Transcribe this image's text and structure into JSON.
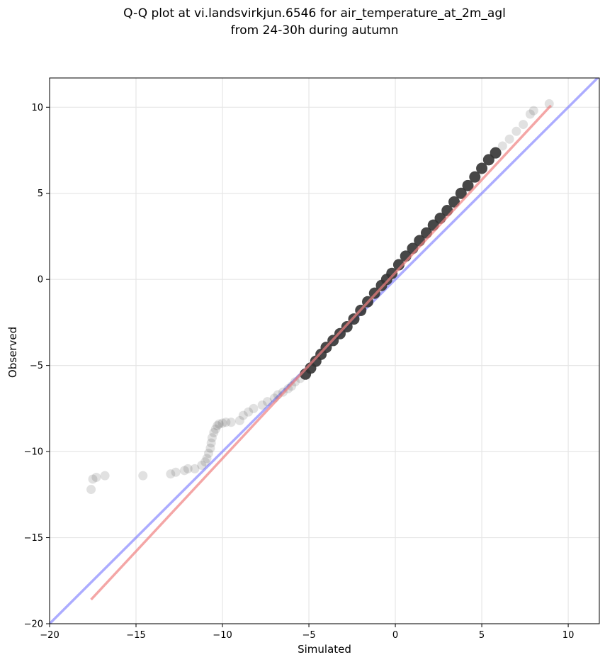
{
  "chart_data": {
    "type": "scatter",
    "title_lines": [
      "Q-Q plot at vi.landsvirkjun.6546 for air_temperature_at_2m_agl",
      "from 24-30h during autumn"
    ],
    "xlabel": "Simulated",
    "ylabel": "Observed",
    "xlim": [
      -20,
      11.8
    ],
    "ylim": [
      -20,
      11.7
    ],
    "xticks": [
      -20,
      -15,
      -10,
      -5,
      0,
      5,
      10
    ],
    "yticks": [
      -20,
      -15,
      -10,
      -5,
      0,
      5,
      10
    ],
    "xtick_labels": [
      "−20",
      "−15",
      "−10",
      "−5",
      "0",
      "5",
      "10"
    ],
    "ytick_labels": [
      "−20",
      "−15",
      "−10",
      "−5",
      "0",
      "5",
      "10"
    ],
    "grid": true,
    "colors": {
      "points": "#333333",
      "fit_line": "#f08080",
      "identity_line": "#8080ff",
      "grid": "#e6e6e6"
    },
    "fit_line": {
      "x": [
        -17.6,
        9.0
      ],
      "y": [
        -18.6,
        10.1
      ]
    },
    "identity_line": {
      "x": [
        -20,
        11.8
      ],
      "y": [
        -20,
        11.8
      ]
    },
    "points": {
      "x": [
        -17.6,
        -17.5,
        -17.3,
        -16.8,
        -14.6,
        -13.0,
        -12.7,
        -12.2,
        -12.0,
        -11.6,
        -11.2,
        -11.0,
        -10.9,
        -10.8,
        -10.7,
        -10.65,
        -10.6,
        -10.5,
        -10.4,
        -10.3,
        -10.2,
        -10.0,
        -9.8,
        -9.5,
        -9.0,
        -8.8,
        -8.5,
        -8.2,
        -7.7,
        -7.4,
        -7.0,
        -6.8,
        -6.5,
        -6.2,
        -6.0,
        -5.8,
        -5.5,
        -5.2,
        -4.9,
        -4.6,
        -4.3,
        -4.0,
        -3.6,
        -3.2,
        -2.8,
        -2.4,
        -2.0,
        -1.6,
        -1.2,
        -0.8,
        -0.5,
        -0.2,
        0.2,
        0.6,
        1.0,
        1.4,
        1.8,
        2.2,
        2.6,
        3.0,
        3.4,
        3.8,
        4.2,
        4.6,
        5.0,
        5.4,
        5.8,
        6.2,
        6.6,
        7.0,
        7.4,
        7.8,
        8.0,
        8.9
      ],
      "y": [
        -12.2,
        -11.6,
        -11.5,
        -11.4,
        -11.4,
        -11.3,
        -11.2,
        -11.1,
        -11.0,
        -11.0,
        -10.8,
        -10.6,
        -10.4,
        -10.1,
        -9.8,
        -9.5,
        -9.2,
        -8.9,
        -8.7,
        -8.5,
        -8.4,
        -8.35,
        -8.3,
        -8.3,
        -8.2,
        -7.9,
        -7.7,
        -7.5,
        -7.3,
        -7.1,
        -6.9,
        -6.7,
        -6.55,
        -6.35,
        -6.2,
        -5.95,
        -5.75,
        -5.5,
        -5.15,
        -4.75,
        -4.35,
        -3.95,
        -3.55,
        -3.15,
        -2.75,
        -2.3,
        -1.8,
        -1.3,
        -0.8,
        -0.35,
        0.0,
        0.35,
        0.85,
        1.35,
        1.8,
        2.25,
        2.7,
        3.15,
        3.55,
        4.0,
        4.5,
        5.0,
        5.45,
        5.95,
        6.45,
        6.95,
        7.35,
        7.75,
        8.15,
        8.6,
        9.0,
        9.6,
        9.8,
        10.2
      ]
    }
  }
}
